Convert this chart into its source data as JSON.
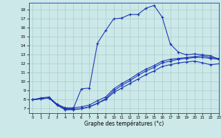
{
  "xlabel": "Graphe des températures (°c)",
  "xlim": [
    -0.5,
    23
  ],
  "ylim": [
    6.5,
    18.8
  ],
  "xticks": [
    0,
    1,
    2,
    3,
    4,
    5,
    6,
    7,
    8,
    9,
    10,
    11,
    12,
    13,
    14,
    15,
    16,
    17,
    18,
    19,
    20,
    21,
    22,
    23
  ],
  "yticks": [
    7,
    8,
    9,
    10,
    11,
    12,
    13,
    14,
    15,
    16,
    17,
    18
  ],
  "bg_color": "#cce8e8",
  "grid_color": "#aacccc",
  "line_color": "#1a35b0",
  "line1_x": [
    0,
    1,
    2,
    3,
    4,
    5,
    6,
    7,
    8,
    9,
    10,
    11,
    12,
    13,
    14,
    15,
    16,
    17,
    18,
    19,
    20,
    21,
    22,
    23
  ],
  "line1_y": [
    8.0,
    8.2,
    8.3,
    7.5,
    7.0,
    7.0,
    9.2,
    9.3,
    14.3,
    15.7,
    17.0,
    17.1,
    17.5,
    17.5,
    18.2,
    18.5,
    17.2,
    14.2,
    13.3,
    13.0,
    13.1,
    13.0,
    12.9,
    12.5
  ],
  "line2_x": [
    0,
    1,
    2,
    3,
    4,
    5,
    6,
    7,
    8,
    9,
    10,
    11,
    12,
    13,
    14,
    15,
    16,
    17,
    18,
    19,
    20,
    21,
    22,
    23
  ],
  "line2_y": [
    8.0,
    8.1,
    8.2,
    7.4,
    6.9,
    6.9,
    7.0,
    7.2,
    7.6,
    8.1,
    9.0,
    9.6,
    10.1,
    10.7,
    11.2,
    11.6,
    12.1,
    12.3,
    12.5,
    12.6,
    12.7,
    12.7,
    12.6,
    12.5
  ],
  "line3_x": [
    0,
    1,
    2,
    3,
    4,
    5,
    6,
    7,
    8,
    9,
    10,
    11,
    12,
    13,
    14,
    15,
    16,
    17,
    18,
    19,
    20,
    21,
    22,
    23
  ],
  "line3_y": [
    8.0,
    8.1,
    8.2,
    7.5,
    7.1,
    7.1,
    7.2,
    7.4,
    7.9,
    8.3,
    9.2,
    9.8,
    10.3,
    10.9,
    11.4,
    11.8,
    12.3,
    12.5,
    12.6,
    12.7,
    12.8,
    12.9,
    12.7,
    12.6
  ],
  "line4_x": [
    0,
    1,
    2,
    3,
    4,
    5,
    6,
    7,
    8,
    9,
    10,
    11,
    12,
    13,
    14,
    15,
    16,
    17,
    18,
    19,
    20,
    21,
    22,
    23
  ],
  "line4_y": [
    8.0,
    8.1,
    8.2,
    7.4,
    6.9,
    6.9,
    7.0,
    7.2,
    7.6,
    8.0,
    8.8,
    9.3,
    9.8,
    10.3,
    10.8,
    11.2,
    11.7,
    11.9,
    12.1,
    12.2,
    12.3,
    12.1,
    11.9,
    12.0
  ]
}
